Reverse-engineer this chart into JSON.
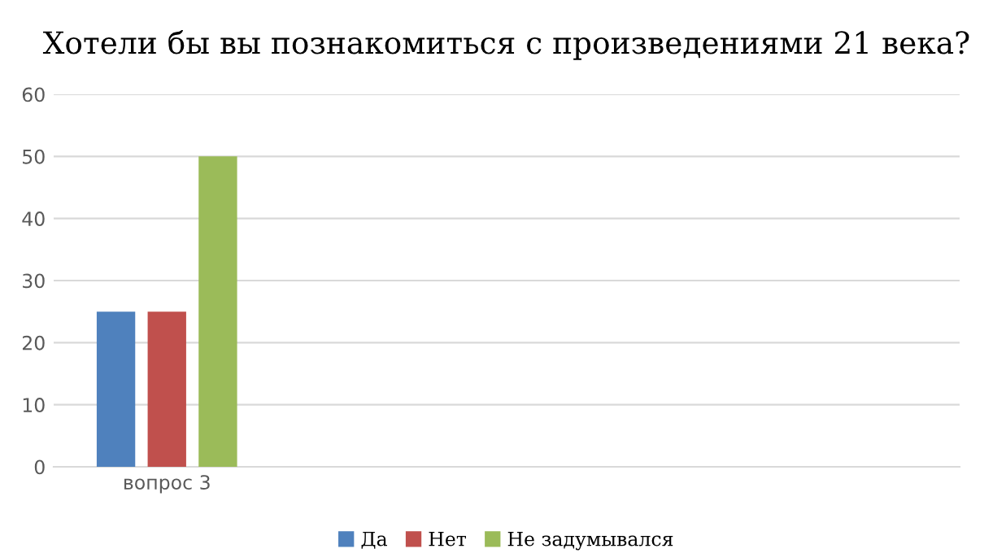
{
  "chart_data": {
    "type": "bar",
    "title": "Хотели бы вы познакомиться с произведениями 21 века?",
    "categories": [
      "вопрос 3",
      null,
      null,
      null
    ],
    "series": [
      {
        "name": "Да",
        "color": "#4f81bd",
        "values": [
          25,
          null,
          null,
          null
        ]
      },
      {
        "name": "Нет",
        "color": "#c0504d",
        "values": [
          25,
          null,
          null,
          null
        ]
      },
      {
        "name": "Не задумывался",
        "color": "#9bbb59",
        "values": [
          50,
          null,
          null,
          null
        ]
      }
    ],
    "ylim": [
      0,
      60
    ],
    "yticks": [
      0,
      10,
      20,
      30,
      40,
      50,
      60
    ],
    "grid": "y",
    "legend": "bottom"
  }
}
